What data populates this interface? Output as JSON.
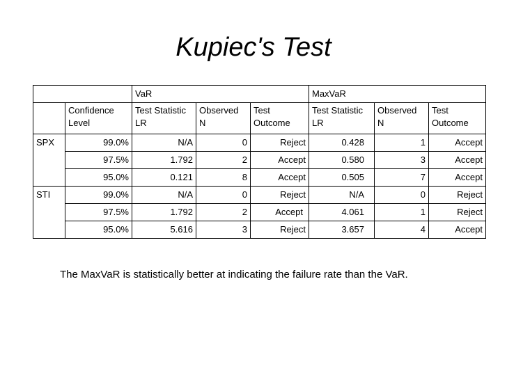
{
  "title": "Kupiec's Test",
  "table": {
    "group_headers": [
      "VaR",
      "MaxVaR"
    ],
    "col_headers": {
      "confidence": [
        "Confidence",
        "Level"
      ],
      "var_stat": [
        "Test Statistic",
        "LR"
      ],
      "var_obs": [
        "Observed",
        "N"
      ],
      "var_out": [
        "Test",
        "Outcome"
      ],
      "max_stat": [
        "Test Statistic",
        "LR"
      ],
      "max_obs": [
        "Observed",
        "N"
      ],
      "max_out": [
        "Test",
        "Outcome"
      ]
    },
    "sections": [
      {
        "label": "SPX",
        "rows": [
          {
            "level": "99.0%",
            "var_lr": "N/A",
            "var_n": "0",
            "var_outcome": "Reject",
            "max_lr": "0.428",
            "max_n": "1",
            "max_outcome": "Accept"
          },
          {
            "level": "97.5%",
            "var_lr": "1.792",
            "var_n": "2",
            "var_outcome": "Accept",
            "max_lr": "0.580",
            "max_n": "3",
            "max_outcome": "Accept"
          },
          {
            "level": "95.0%",
            "var_lr": "0.121",
            "var_n": "8",
            "var_outcome": "Accept",
            "max_lr": "0.505",
            "max_n": "7",
            "max_outcome": "Accept"
          }
        ]
      },
      {
        "label": "STI",
        "rows": [
          {
            "level": "99.0%",
            "var_lr": "N/A",
            "var_n": "0",
            "var_outcome": "Reject",
            "max_lr": "N/A",
            "max_n": "0",
            "max_outcome": "Reject"
          },
          {
            "level": "97.5%",
            "var_lr": "1.792",
            "var_n": "2",
            "var_outcome": "Accept",
            "max_lr": "4.061",
            "max_n": "1",
            "max_outcome": "Reject"
          },
          {
            "level": "95.0%",
            "var_lr": "5.616",
            "var_n": "3",
            "var_outcome": "Reject",
            "max_lr": "3.657",
            "max_n": "4",
            "max_outcome": "Accept"
          }
        ]
      }
    ]
  },
  "note": "The MaxVaR is statistically better at indicating the failure rate than the VaR."
}
